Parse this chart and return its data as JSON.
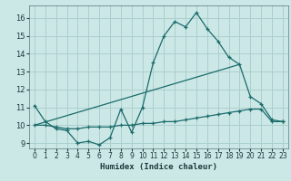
{
  "xlabel": "Humidex (Indice chaleur)",
  "xlim": [
    -0.5,
    23.5
  ],
  "ylim": [
    8.7,
    16.7
  ],
  "yticks": [
    9,
    10,
    11,
    12,
    13,
    14,
    15,
    16
  ],
  "xticks": [
    0,
    1,
    2,
    3,
    4,
    5,
    6,
    7,
    8,
    9,
    10,
    11,
    12,
    13,
    14,
    15,
    16,
    17,
    18,
    19,
    20,
    21,
    22,
    23
  ],
  "bg_color": "#cce8e6",
  "grid_color": "#aacfcd",
  "line_color": "#1a6b6b",
  "line1_x": [
    0,
    1,
    2,
    3,
    4,
    5,
    6,
    7,
    8,
    9,
    10,
    11,
    12,
    13,
    14,
    15,
    16,
    17,
    18,
    19,
    20,
    21,
    22,
    23
  ],
  "line1_y": [
    11.1,
    10.2,
    9.8,
    9.7,
    9.0,
    9.1,
    8.9,
    9.3,
    10.9,
    9.6,
    11.0,
    13.5,
    15.0,
    15.8,
    15.5,
    16.3,
    15.4,
    14.7,
    13.8,
    13.4,
    11.6,
    11.2,
    10.3,
    10.2
  ],
  "line2_x": [
    0,
    1,
    2,
    3,
    4,
    5,
    6,
    7,
    8,
    9,
    10,
    11,
    12,
    13,
    14,
    15,
    16,
    17,
    18,
    19,
    20,
    21,
    22,
    23
  ],
  "line2_y": [
    10.0,
    10.0,
    9.9,
    9.8,
    9.8,
    9.9,
    9.9,
    9.9,
    10.0,
    10.0,
    10.1,
    10.1,
    10.2,
    10.2,
    10.3,
    10.4,
    10.5,
    10.6,
    10.7,
    10.8,
    10.9,
    10.9,
    10.2,
    10.2
  ],
  "line3_x": [
    0,
    19
  ],
  "line3_y": [
    10.0,
    13.4
  ]
}
